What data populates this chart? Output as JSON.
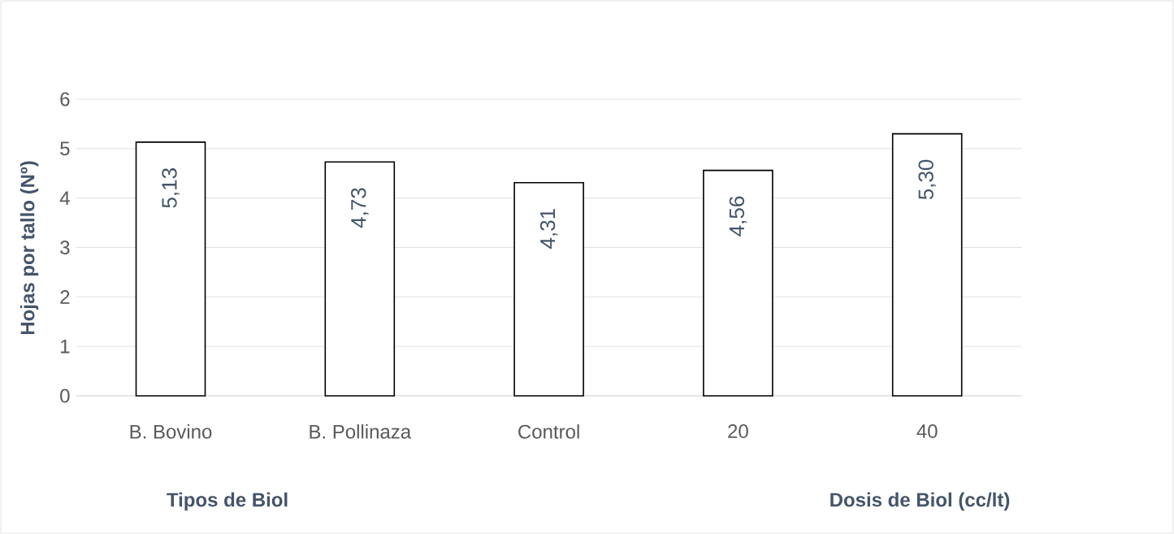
{
  "chart_data": {
    "type": "bar",
    "ylabel": "Hojas por tallo (Nº)",
    "categories": [
      "B. Bovino",
      "B. Pollinaza",
      "Control",
      "20",
      "40"
    ],
    "values": [
      5.13,
      4.73,
      4.31,
      4.56,
      5.3
    ],
    "value_labels": [
      "5,13",
      "4,73",
      "4,31",
      "4,56",
      "5,30"
    ],
    "color": "#ffffff",
    "ylim": [
      0,
      6
    ],
    "yticks": [
      0,
      1,
      2,
      3,
      4,
      5,
      6
    ],
    "grid": "y",
    "annotations": [
      "Tipos de Biol",
      "Dosis de Biol (cc/lt)"
    ]
  }
}
